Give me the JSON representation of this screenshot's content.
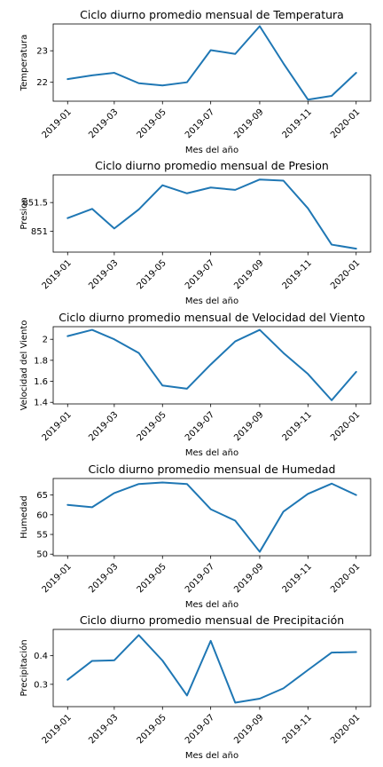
{
  "colors": {
    "line": "#1f77b4",
    "axes": "#000000",
    "background": "#ffffff"
  },
  "chart_data": [
    {
      "type": "line",
      "title": "Ciclo diurno promedio mensual de Temperatura",
      "xlabel": "Mes del año",
      "ylabel": "Temperatura",
      "x": [
        "2019-01-01",
        "2019-02-01",
        "2019-03-01",
        "2019-04-01",
        "2019-05-01",
        "2019-06-01",
        "2019-07-01",
        "2019-08-01",
        "2019-09-01",
        "2019-10-01",
        "2019-11-01",
        "2019-12-01",
        "2020-01-01"
      ],
      "xticks": [
        "2019-01",
        "2019-03",
        "2019-05",
        "2019-07",
        "2019-09",
        "2019-11",
        "2020-01"
      ],
      "yticks": [
        22,
        23
      ],
      "ylim": [
        21.4,
        23.85
      ],
      "grid": false,
      "series": [
        {
          "values": [
            22.1,
            22.22,
            22.3,
            21.97,
            21.9,
            22.0,
            23.02,
            22.9,
            23.78,
            22.6,
            21.45,
            21.57,
            22.3
          ]
        }
      ]
    },
    {
      "type": "line",
      "title": "Ciclo diurno promedio mensual de Presion",
      "xlabel": "Mes del año",
      "ylabel": "Presion",
      "x": [
        "2019-01-01",
        "2019-02-01",
        "2019-03-01",
        "2019-04-01",
        "2019-05-01",
        "2019-06-01",
        "2019-07-01",
        "2019-08-01",
        "2019-09-01",
        "2019-10-01",
        "2019-11-01",
        "2019-12-01",
        "2020-01-01"
      ],
      "xticks": [
        "2019-01",
        "2019-03",
        "2019-05",
        "2019-07",
        "2019-09",
        "2019-11",
        "2020-01"
      ],
      "yticks": [
        851.0,
        851.5
      ],
      "ylim": [
        850.64,
        851.98
      ],
      "grid": false,
      "series": [
        {
          "values": [
            851.23,
            851.39,
            851.05,
            851.38,
            851.8,
            851.66,
            851.76,
            851.72,
            851.9,
            851.88,
            851.4,
            850.77,
            850.7
          ]
        }
      ]
    },
    {
      "type": "line",
      "title": "Ciclo diurno promedio mensual de Velocidad del Viento",
      "xlabel": "Mes del año",
      "ylabel": "Velocidad del Viento",
      "x": [
        "2019-01-01",
        "2019-02-01",
        "2019-03-01",
        "2019-04-01",
        "2019-05-01",
        "2019-06-01",
        "2019-07-01",
        "2019-08-01",
        "2019-09-01",
        "2019-10-01",
        "2019-11-01",
        "2019-12-01",
        "2020-01-01"
      ],
      "xticks": [
        "2019-01",
        "2019-03",
        "2019-05",
        "2019-07",
        "2019-09",
        "2019-11",
        "2020-01"
      ],
      "yticks": [
        1.4,
        1.6,
        1.8,
        2.0
      ],
      "ylim": [
        1.385,
        2.12
      ],
      "grid": false,
      "series": [
        {
          "values": [
            2.03,
            2.09,
            2.0,
            1.87,
            1.56,
            1.53,
            1.76,
            1.98,
            2.09,
            1.87,
            1.67,
            1.42,
            1.69
          ]
        }
      ]
    },
    {
      "type": "line",
      "title": "Ciclo diurno promedio mensual de Humedad",
      "xlabel": "Mes del año",
      "ylabel": "Humedad",
      "x": [
        "2019-01-01",
        "2019-02-01",
        "2019-03-01",
        "2019-04-01",
        "2019-05-01",
        "2019-06-01",
        "2019-07-01",
        "2019-08-01",
        "2019-09-01",
        "2019-10-01",
        "2019-11-01",
        "2019-12-01",
        "2020-01-01"
      ],
      "xticks": [
        "2019-01",
        "2019-03",
        "2019-05",
        "2019-07",
        "2019-09",
        "2019-11",
        "2020-01"
      ],
      "yticks": [
        50,
        55,
        60,
        65
      ],
      "ylim": [
        49.6,
        69.2
      ],
      "grid": false,
      "series": [
        {
          "values": [
            62.5,
            61.9,
            65.5,
            67.8,
            68.2,
            67.8,
            61.4,
            58.5,
            50.6,
            60.8,
            65.3,
            67.9,
            65.0
          ]
        }
      ]
    },
    {
      "type": "line",
      "title": "Ciclo diurno promedio mensual de Precipitación",
      "xlabel": "Mes del año",
      "ylabel": "Precipitación",
      "x": [
        "2019-01-01",
        "2019-02-01",
        "2019-03-01",
        "2019-04-01",
        "2019-05-01",
        "2019-06-01",
        "2019-07-01",
        "2019-08-01",
        "2019-09-01",
        "2019-10-01",
        "2019-11-01",
        "2019-12-01",
        "2020-01-01"
      ],
      "xticks": [
        "2019-01",
        "2019-03",
        "2019-05",
        "2019-07",
        "2019-09",
        "2019-11",
        "2020-01"
      ],
      "yticks": [
        0.3,
        0.4
      ],
      "ylim": [
        0.222,
        0.492
      ],
      "grid": false,
      "series": [
        {
          "values": [
            0.316,
            0.382,
            0.384,
            0.472,
            0.383,
            0.261,
            0.452,
            0.236,
            0.25,
            0.286,
            0.35,
            0.411,
            0.413
          ]
        }
      ]
    }
  ]
}
